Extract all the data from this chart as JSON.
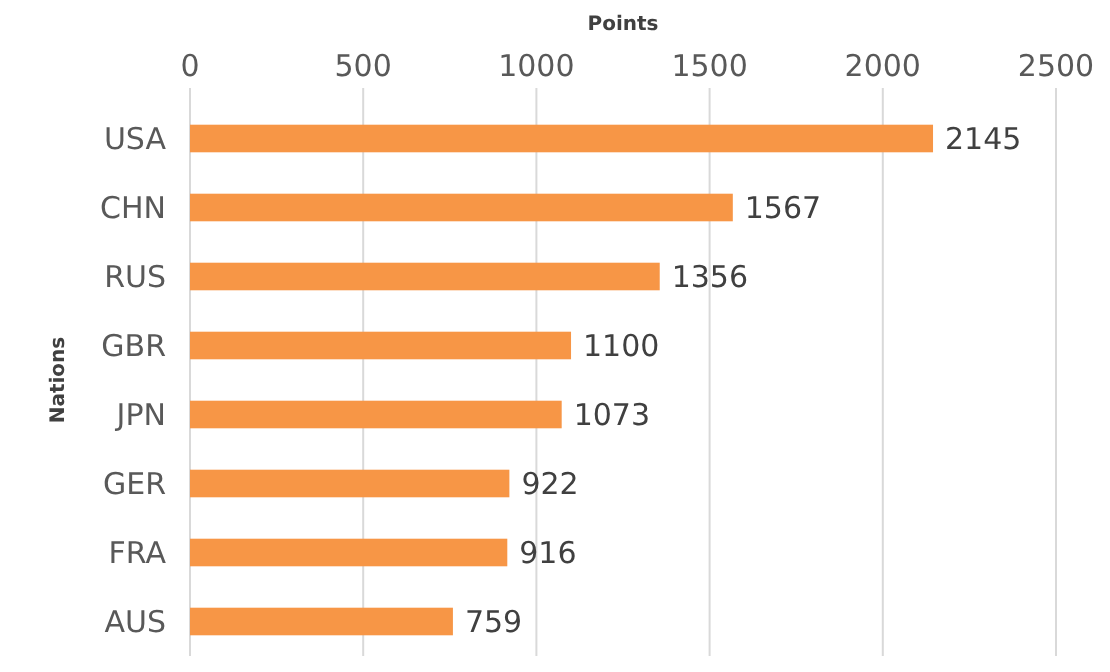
{
  "chart_data": {
    "type": "bar",
    "orientation": "horizontal",
    "xlabel": "Points",
    "ylabel": "Nations",
    "categories": [
      "USA",
      "CHN",
      "RUS",
      "GBR",
      "JPN",
      "GER",
      "FRA",
      "AUS"
    ],
    "values": [
      2145,
      1567,
      1356,
      1100,
      1073,
      922,
      916,
      759
    ],
    "color": "#f79646",
    "xlim": [
      0,
      2500
    ],
    "xticks": [
      0,
      500,
      1000,
      1500,
      2000,
      2500
    ],
    "grid": "x",
    "data_labels": true
  }
}
